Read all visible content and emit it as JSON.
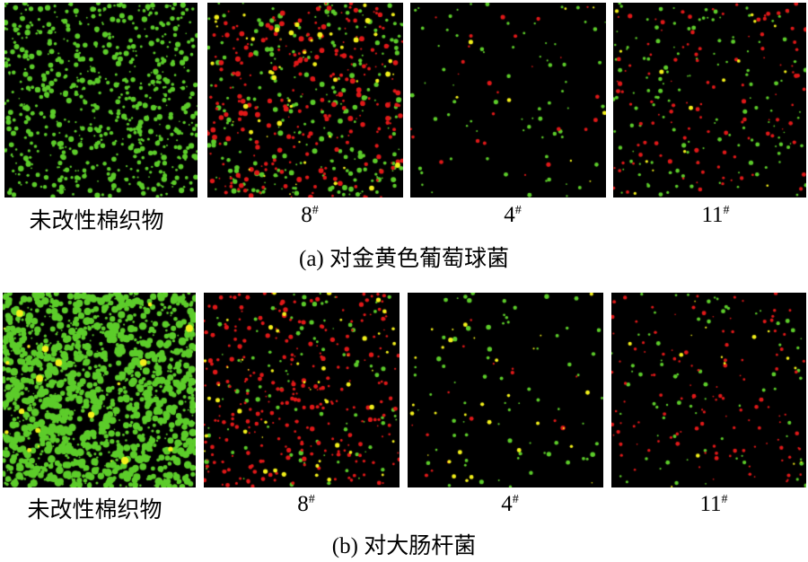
{
  "colors": {
    "live": "#5ccc2a",
    "dead": "#e01818",
    "overlap": "#f2f01a",
    "background": "#000000"
  },
  "rows": [
    {
      "caption": "(a) 对金黄色葡萄球菌",
      "panels": [
        {
          "label": "未改性棉织物",
          "sup": ""
        },
        {
          "label": "8",
          "sup": "#"
        },
        {
          "label": "4",
          "sup": "#"
        },
        {
          "label": "11",
          "sup": "#"
        }
      ]
    },
    {
      "caption": "(b) 对大肠杆菌",
      "panels": [
        {
          "label": "未改性棉织物",
          "sup": ""
        },
        {
          "label": "8",
          "sup": "#"
        },
        {
          "label": "4",
          "sup": "#"
        },
        {
          "label": "11",
          "sup": "#"
        }
      ]
    }
  ]
}
